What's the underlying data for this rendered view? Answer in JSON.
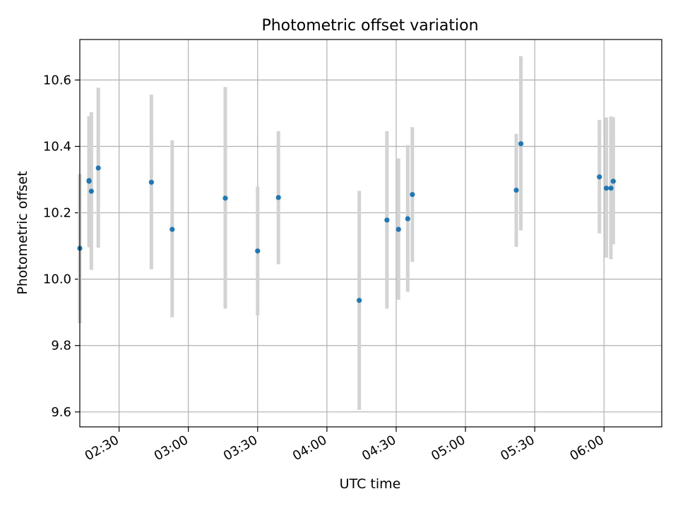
{
  "chart_data": {
    "type": "scatter",
    "title": "Photometric offset variation",
    "xlabel": "UTC time",
    "ylabel": "Photometric offset",
    "grid": true,
    "x_unit": "UTC time (HH:MM)",
    "xlim": [
      "02:13",
      "06:25"
    ],
    "ylim": [
      9.555,
      10.722
    ],
    "x_ticks": [
      "02:30",
      "03:00",
      "03:30",
      "04:00",
      "04:30",
      "05:00",
      "05:30",
      "06:00"
    ],
    "y_ticks": [
      "9.6",
      "9.8",
      "10.0",
      "10.2",
      "10.4",
      "10.6"
    ],
    "colors": {
      "marker": "#1f77b4",
      "errorbar": "#d3d3d3",
      "grid": "#b0b0b0"
    },
    "series": [
      {
        "points": [
          {
            "t": "02:13",
            "y": 10.093,
            "low": 9.867,
            "high": 10.317
          },
          {
            "t": "02:17",
            "y": 10.295,
            "low": 10.101,
            "high": 10.487
          },
          {
            "t": "02:17",
            "y": 10.297,
            "low": 10.096,
            "high": 10.491
          },
          {
            "t": "02:18",
            "y": 10.265,
            "low": 10.028,
            "high": 10.503
          },
          {
            "t": "02:21",
            "y": 10.335,
            "low": 10.095,
            "high": 10.577
          },
          {
            "t": "02:44",
            "y": 10.292,
            "low": 10.03,
            "high": 10.556
          },
          {
            "t": "02:53",
            "y": 10.15,
            "low": 9.885,
            "high": 10.418
          },
          {
            "t": "03:16",
            "y": 10.244,
            "low": 9.911,
            "high": 10.579
          },
          {
            "t": "03:30",
            "y": 10.085,
            "low": 9.891,
            "high": 10.279
          },
          {
            "t": "03:39",
            "y": 10.246,
            "low": 10.045,
            "high": 10.446
          },
          {
            "t": "04:14",
            "y": 9.936,
            "low": 9.606,
            "high": 10.266
          },
          {
            "t": "04:26",
            "y": 10.178,
            "low": 9.911,
            "high": 10.446
          },
          {
            "t": "04:31",
            "y": 10.15,
            "low": 9.938,
            "high": 10.364
          },
          {
            "t": "04:35",
            "y": 10.182,
            "low": 9.962,
            "high": 10.404
          },
          {
            "t": "04:37",
            "y": 10.255,
            "low": 10.052,
            "high": 10.458
          },
          {
            "t": "05:22",
            "y": 10.268,
            "low": 10.097,
            "high": 10.438
          },
          {
            "t": "05:24",
            "y": 10.408,
            "low": 10.147,
            "high": 10.672
          },
          {
            "t": "05:58",
            "y": 10.308,
            "low": 10.138,
            "high": 10.48
          },
          {
            "t": "06:01",
            "y": 10.274,
            "low": 10.065,
            "high": 10.487
          },
          {
            "t": "06:03",
            "y": 10.274,
            "low": 10.06,
            "high": 10.49
          },
          {
            "t": "06:04",
            "y": 10.295,
            "low": 10.105,
            "high": 10.488
          }
        ]
      }
    ]
  }
}
